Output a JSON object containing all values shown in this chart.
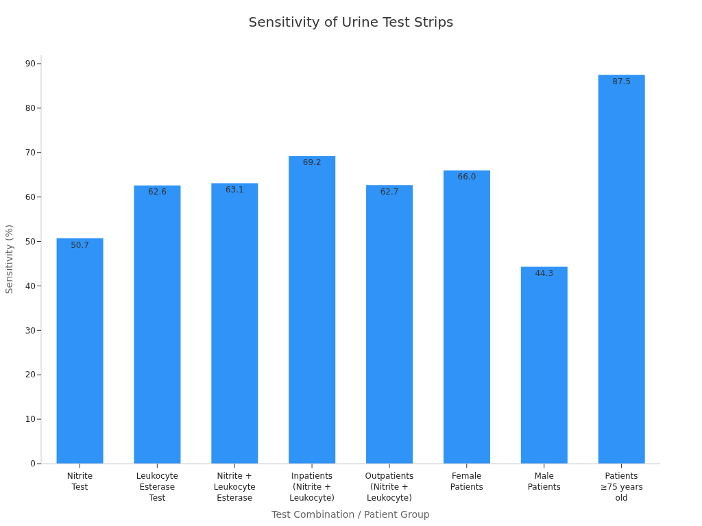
{
  "chart_data": {
    "type": "bar",
    "title": "Sensitivity of Urine Test Strips",
    "xlabel": "Test Combination / Patient Group",
    "ylabel": "Sensitivity (%)",
    "categories": [
      "Nitrite\nTest",
      "Leukocyte\nEsterase\nTest",
      "Nitrite +\nLeukocyte\nEsterase",
      "Inpatients\n(Nitrite +\nLeukocyte)",
      "Outpatients\n(Nitrite +\nLeukocyte)",
      "Female\nPatients",
      "Male\nPatients",
      "Patients\n≥75 years\nold"
    ],
    "values": [
      50.7,
      62.6,
      63.1,
      69.2,
      62.7,
      66.0,
      44.3,
      87.5
    ],
    "value_labels": [
      "50.7",
      "62.6",
      "63.1",
      "69.2",
      "62.7",
      "66.0",
      "44.3",
      "87.5"
    ],
    "color": "#2f93f8",
    "ylim": [
      0,
      92
    ],
    "yticks": [
      0,
      10,
      20,
      30,
      40,
      50,
      60,
      70,
      80,
      90
    ],
    "grid": false,
    "legend": false
  }
}
